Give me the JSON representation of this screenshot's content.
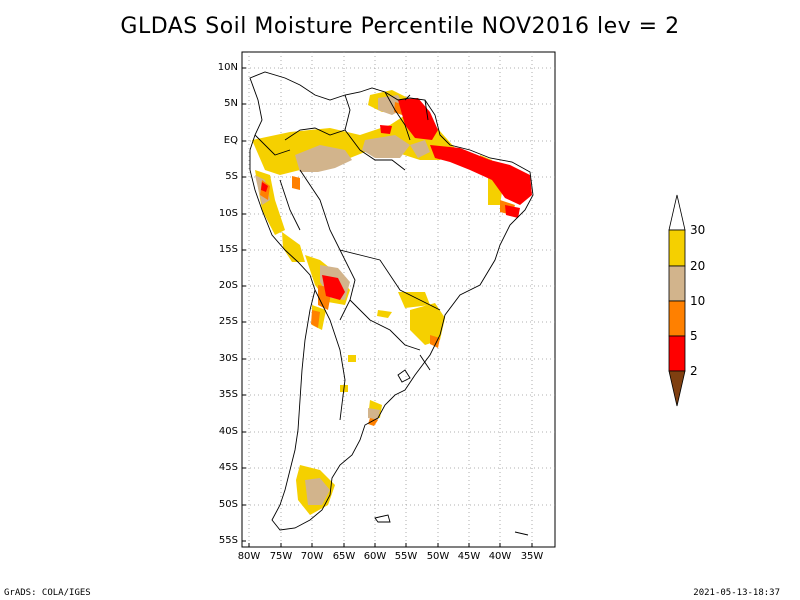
{
  "title": "GLDAS Soil Moisture Percentile NOV2016 lev = 2",
  "lat_labels": [
    "10N",
    "5N",
    "EQ",
    "5S",
    "10S",
    "15S",
    "20S",
    "25S",
    "30S",
    "35S",
    "40S",
    "45S",
    "50S",
    "55S"
  ],
  "lon_labels": [
    "80W",
    "75W",
    "70W",
    "65W",
    "60W",
    "55W",
    "50W",
    "45W",
    "40W",
    "35W"
  ],
  "legend": {
    "labels": [
      "30",
      "20",
      "10",
      "5",
      "2"
    ],
    "colors": {
      "above30": "#ffffff",
      "c20_30": "#f5d000",
      "c10_20": "#d2b48c",
      "c5_10": "#ff8000",
      "c2_5": "#ff0000",
      "below2": "#7f3f10"
    }
  },
  "footer_left": "GrADS: COLA/IGES",
  "footer_right": "2021-05-13-18:37"
}
